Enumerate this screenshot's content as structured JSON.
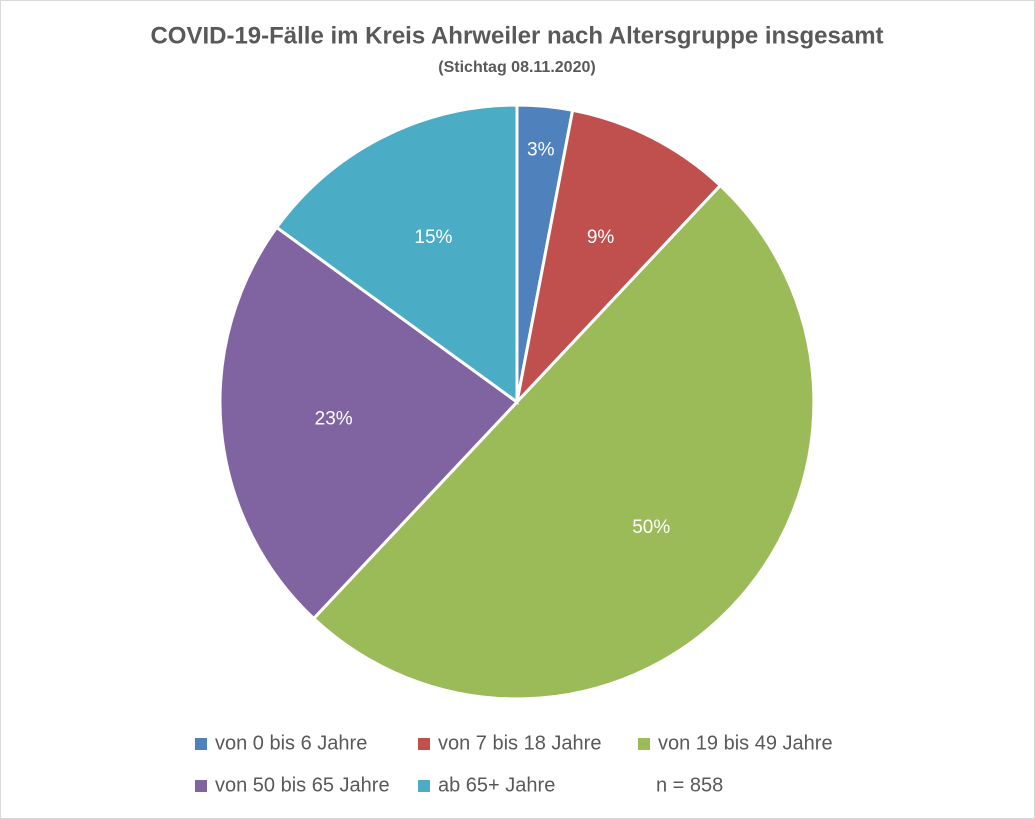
{
  "chart_data": {
    "type": "pie",
    "title": "COVID-19-Fälle im Kreis Ahrweiler nach Altersgruppe insgesamt",
    "subtitle": "(Stichtag 08.11.2020)",
    "categories": [
      "von 0 bis 6 Jahre",
      "von 7 bis 18 Jahre",
      "von 19 bis 49 Jahre",
      "von 50 bis 65 Jahre",
      "ab 65+ Jahre"
    ],
    "values": [
      3,
      9,
      50,
      23,
      15
    ],
    "value_labels": [
      "3%",
      "9%",
      "50%",
      "23%",
      "15%"
    ],
    "colors": [
      "#4f81bd",
      "#c0504d",
      "#9bbb59",
      "#8064a2",
      "#4bacc6"
    ],
    "annotation": "n = 858",
    "legend": "bottom"
  }
}
